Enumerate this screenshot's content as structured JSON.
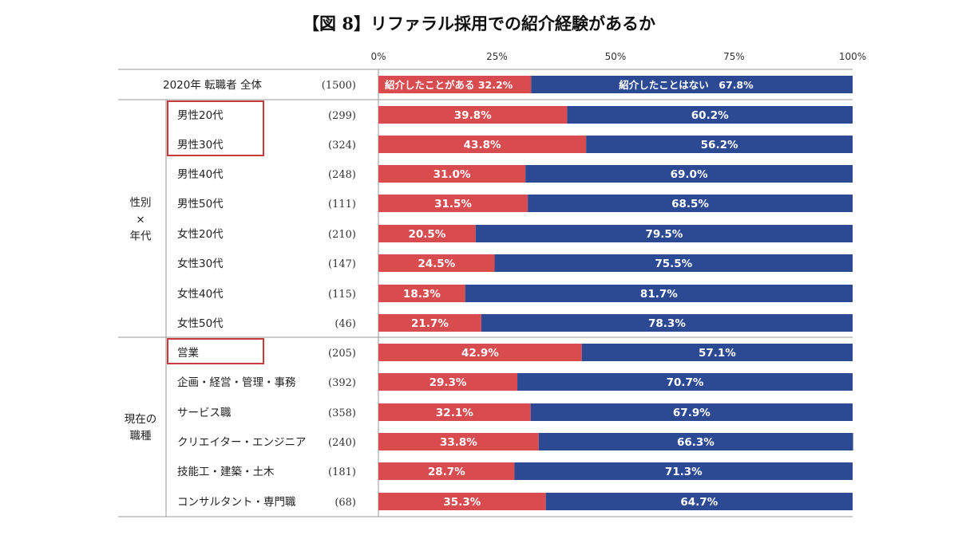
{
  "title": "【図 8】リファラル採用での紹介経験があるか",
  "colors": {
    "introduced": "#d84b4f",
    "not_introduced": "#2c4a94",
    "highlight_box": "#c93a3a"
  },
  "chart_data": {
    "type": "bar",
    "orientation": "horizontal-stacked-100",
    "x_ticks": [
      "0%",
      "25%",
      "50%",
      "75%",
      "100%"
    ],
    "xlim": [
      0,
      100
    ],
    "series": [
      {
        "key": "introduced",
        "name": "紹介したことがある"
      },
      {
        "key": "not_introduced",
        "name": "紹介したことはない"
      }
    ],
    "rows": [
      {
        "label": "2020年 転職者 全体",
        "count": "(1500)",
        "introduced": 32.2,
        "not_introduced": 67.8,
        "group": "total",
        "introduced_label": "紹介したことがある 32.2%",
        "not_introduced_label": "紹介したことはない　67.8%"
      },
      {
        "label": "男性20代",
        "count": "(299)",
        "introduced": 39.8,
        "not_introduced": 60.2,
        "group": "gender",
        "highlighted": true
      },
      {
        "label": "男性30代",
        "count": "(324)",
        "introduced": 43.8,
        "not_introduced": 56.2,
        "group": "gender",
        "highlighted": true
      },
      {
        "label": "男性40代",
        "count": "(248)",
        "introduced": 31.0,
        "not_introduced": 69.0,
        "group": "gender"
      },
      {
        "label": "男性50代",
        "count": "(111)",
        "introduced": 31.5,
        "not_introduced": 68.5,
        "group": "gender"
      },
      {
        "label": "女性20代",
        "count": "(210)",
        "introduced": 20.5,
        "not_introduced": 79.5,
        "group": "gender"
      },
      {
        "label": "女性30代",
        "count": "(147)",
        "introduced": 24.5,
        "not_introduced": 75.5,
        "group": "gender"
      },
      {
        "label": "女性40代",
        "count": "(115)",
        "introduced": 18.3,
        "not_introduced": 81.7,
        "group": "gender"
      },
      {
        "label": "女性50代",
        "count": "(46)",
        "introduced": 21.7,
        "not_introduced": 78.3,
        "group": "gender"
      },
      {
        "label": "営業",
        "count": "(205)",
        "introduced": 42.9,
        "not_introduced": 57.1,
        "group": "job",
        "highlighted": true
      },
      {
        "label": "企画・経営・管理・事務",
        "count": "(392)",
        "introduced": 29.3,
        "not_introduced": 70.7,
        "group": "job"
      },
      {
        "label": "サービス職",
        "count": "(358)",
        "introduced": 32.1,
        "not_introduced": 67.9,
        "group": "job"
      },
      {
        "label": "クリエイター・エンジニア",
        "count": "(240)",
        "introduced": 33.8,
        "not_introduced": 66.3,
        "group": "job"
      },
      {
        "label": "技能工・建築・土木",
        "count": "(181)",
        "introduced": 28.7,
        "not_introduced": 71.3,
        "group": "job"
      },
      {
        "label": "コンサルタント・専門職",
        "count": "(68)",
        "introduced": 35.3,
        "not_introduced": 64.7,
        "group": "job"
      }
    ],
    "groups": [
      {
        "key": "gender",
        "label_lines": [
          "性別",
          "×",
          "年代"
        ]
      },
      {
        "key": "job",
        "label_lines": [
          "現在の",
          "職種"
        ]
      }
    ]
  }
}
